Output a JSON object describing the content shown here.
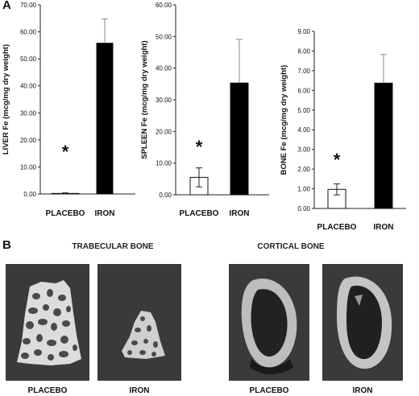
{
  "panels": {
    "a": "A",
    "b": "B"
  },
  "chart_data": [
    {
      "type": "bar",
      "ylabel": "LIVER Fe (mcg/mg dry weight)",
      "categories": [
        "PLACEBO",
        "IRON"
      ],
      "values": [
        0.2,
        55.8
      ],
      "errors": [
        0.2,
        9.0
      ],
      "ylim": [
        0,
        70
      ],
      "ticks": [
        "0.00",
        "10.00",
        "20.00",
        "30.00",
        "40.00",
        "50.00",
        "60.00",
        "70.00"
      ],
      "fills": [
        "#ffffff",
        "#000000"
      ],
      "annotation": "*"
    },
    {
      "type": "bar",
      "ylabel": "SPLEEN Fe (mcg/mg dry weight)",
      "categories": [
        "PLACEBO",
        "IRON"
      ],
      "values": [
        5.5,
        35.3
      ],
      "errors": [
        3.0,
        13.8
      ],
      "ylim": [
        0,
        60
      ],
      "ticks": [
        "0.00",
        "10.00",
        "20.00",
        "30.00",
        "40.00",
        "50.00",
        "60.00"
      ],
      "fills": [
        "#ffffff",
        "#000000"
      ],
      "annotation": "*"
    },
    {
      "type": "bar",
      "ylabel": "BONE Fe (mcg/mg dry weight)",
      "categories": [
        "PLACEBO",
        "IRON"
      ],
      "values": [
        0.97,
        6.37
      ],
      "errors": [
        0.28,
        1.45
      ],
      "ylim": [
        0,
        9
      ],
      "ticks": [
        "0.00",
        "1.00",
        "2.00",
        "3.00",
        "4.00",
        "5.00",
        "6.00",
        "7.00",
        "8.00",
        "9.00"
      ],
      "fills": [
        "#ffffff",
        "#000000"
      ],
      "annotation": "*"
    }
  ],
  "panel_b": {
    "trabecular_title": "TRABECULAR BONE",
    "cortical_title": "CORTICAL BONE",
    "labels": [
      "PLACEBO",
      "IRON",
      "PLACEBO",
      "IRON"
    ]
  }
}
